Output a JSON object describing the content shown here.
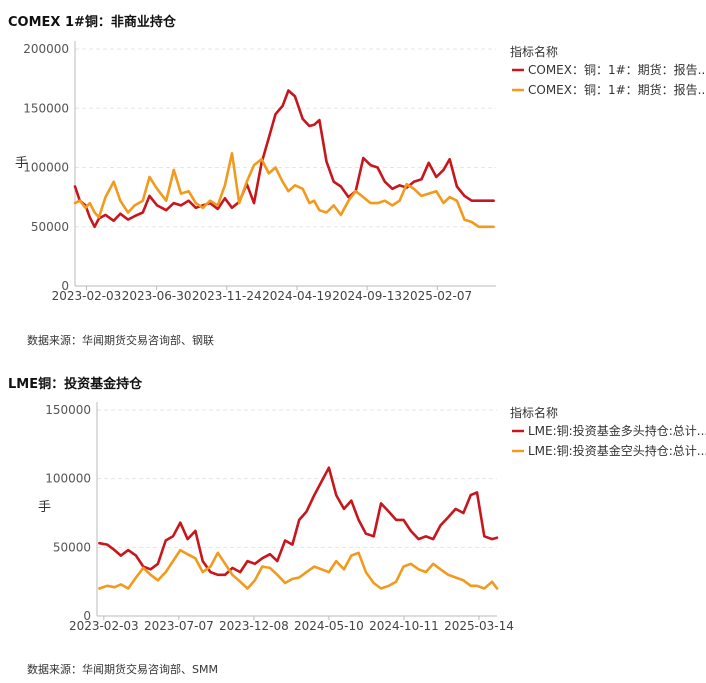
{
  "charts": [
    {
      "title": "COMEX 1#铜：非商业持仓",
      "source": "数据来源：华闻期货交易咨询部、钢联"
    },
    {
      "title": "LME铜：投资基金持仓",
      "source": "数据来源：华闻期货交易咨询部、SMM"
    }
  ],
  "chart_data": [
    {
      "type": "line",
      "title": "COMEX 1#铜：非商业持仓",
      "ylabel": "手",
      "ylim": [
        0,
        200000
      ],
      "yticks": [
        "200000",
        "150000",
        "100000",
        "50000",
        "0"
      ],
      "xlim": [
        "2023-01-10",
        "2025-06-10"
      ],
      "xticks": [
        "2023-02-03",
        "2023-06-30",
        "2023-11-24",
        "2024-04-19",
        "2024-09-13",
        "2025-02-07"
      ],
      "grid": true,
      "legend_title": "指标名称",
      "legend_position": "right",
      "series": [
        {
          "name": "COMEX：铜：1#：期货：报告...",
          "color": "#c8161d",
          "x": [
            "2023-01-10",
            "2023-01-20",
            "2023-02-01",
            "2023-02-10",
            "2023-02-20",
            "2023-03-01",
            "2023-03-15",
            "2023-04-01",
            "2023-04-15",
            "2023-05-01",
            "2023-05-15",
            "2023-06-01",
            "2023-06-15",
            "2023-07-01",
            "2023-07-20",
            "2023-08-05",
            "2023-08-20",
            "2023-09-05",
            "2023-09-20",
            "2023-10-05",
            "2023-10-20",
            "2023-11-05",
            "2023-11-20",
            "2023-12-05",
            "2023-12-20",
            "2024-01-05",
            "2024-01-20",
            "2024-02-05",
            "2024-02-20",
            "2024-03-05",
            "2024-03-20",
            "2024-04-01",
            "2024-04-15",
            "2024-05-01",
            "2024-05-15",
            "2024-05-25",
            "2024-06-05",
            "2024-06-20",
            "2024-07-05",
            "2024-07-20",
            "2024-08-05",
            "2024-08-20",
            "2024-09-05",
            "2024-09-20",
            "2024-10-05",
            "2024-10-20",
            "2024-11-05",
            "2024-11-20",
            "2024-12-05",
            "2024-12-20",
            "2025-01-05",
            "2025-01-20",
            "2025-02-05",
            "2025-02-20",
            "2025-03-05",
            "2025-03-20",
            "2025-04-05",
            "2025-04-20",
            "2025-05-05",
            "2025-05-20",
            "2025-06-05"
          ],
          "values": [
            84000,
            72000,
            68000,
            58000,
            50000,
            57000,
            60000,
            55000,
            61000,
            56000,
            59000,
            62000,
            76000,
            68000,
            64000,
            70000,
            68000,
            72000,
            66000,
            68000,
            70000,
            65000,
            74000,
            66000,
            71000,
            86000,
            70000,
            104000,
            125000,
            145000,
            152000,
            165000,
            160000,
            141000,
            135000,
            136000,
            140000,
            105000,
            88000,
            84000,
            75000,
            80000,
            108000,
            102000,
            100000,
            88000,
            82000,
            85000,
            83000,
            88000,
            90000,
            104000,
            92000,
            98000,
            107000,
            84000,
            76000,
            72000,
            72000,
            72000,
            72000
          ]
        },
        {
          "name": "COMEX：铜：1#：期货：报告...",
          "color": "#f29a1d",
          "x": [
            "2023-01-10",
            "2023-01-20",
            "2023-02-01",
            "2023-02-10",
            "2023-02-20",
            "2023-03-01",
            "2023-03-15",
            "2023-04-01",
            "2023-04-15",
            "2023-05-01",
            "2023-05-15",
            "2023-06-01",
            "2023-06-15",
            "2023-07-01",
            "2023-07-20",
            "2023-08-05",
            "2023-08-20",
            "2023-09-05",
            "2023-09-20",
            "2023-10-05",
            "2023-10-20",
            "2023-11-05",
            "2023-11-20",
            "2023-12-05",
            "2023-12-20",
            "2024-01-05",
            "2024-01-20",
            "2024-02-05",
            "2024-02-20",
            "2024-03-05",
            "2024-03-20",
            "2024-04-01",
            "2024-04-15",
            "2024-05-01",
            "2024-05-15",
            "2024-05-25",
            "2024-06-05",
            "2024-06-20",
            "2024-07-05",
            "2024-07-20",
            "2024-08-05",
            "2024-08-20",
            "2024-09-05",
            "2024-09-20",
            "2024-10-05",
            "2024-10-20",
            "2024-11-05",
            "2024-11-20",
            "2024-12-05",
            "2024-12-20",
            "2025-01-05",
            "2025-01-20",
            "2025-02-05",
            "2025-02-20",
            "2025-03-05",
            "2025-03-20",
            "2025-04-05",
            "2025-04-20",
            "2025-05-05",
            "2025-05-20",
            "2025-06-05"
          ],
          "values": [
            70000,
            72000,
            66000,
            70000,
            62000,
            58000,
            75000,
            88000,
            72000,
            62000,
            68000,
            72000,
            92000,
            82000,
            72000,
            98000,
            78000,
            80000,
            70000,
            66000,
            72000,
            68000,
            85000,
            112000,
            70000,
            88000,
            102000,
            107000,
            95000,
            100000,
            88000,
            80000,
            85000,
            82000,
            70000,
            72000,
            64000,
            62000,
            68000,
            60000,
            72000,
            80000,
            75000,
            70000,
            70000,
            72000,
            68000,
            72000,
            86000,
            82000,
            76000,
            78000,
            80000,
            70000,
            75000,
            72000,
            56000,
            54000,
            50000,
            50000,
            50000
          ]
        }
      ]
    },
    {
      "type": "line",
      "title": "LME铜：投资基金持仓",
      "ylabel": "手",
      "ylim": [
        0,
        150000
      ],
      "yticks": [
        "150000",
        "100000",
        "50000",
        "0"
      ],
      "xlim": [
        "2023-01-20",
        "2025-04-20"
      ],
      "xticks": [
        "2023-02-03",
        "2023-07-07",
        "2023-12-08",
        "2024-05-10",
        "2024-10-11",
        "2025-03-14"
      ],
      "grid": true,
      "legend_title": "指标名称",
      "legend_position": "right",
      "series": [
        {
          "name": "LME:铜:投资基金多头持仓:总计...",
          "color": "#c8161d",
          "x": [
            "2023-01-25",
            "2023-02-10",
            "2023-02-25",
            "2023-03-10",
            "2023-03-25",
            "2023-04-10",
            "2023-04-25",
            "2023-05-10",
            "2023-05-25",
            "2023-06-10",
            "2023-06-25",
            "2023-07-10",
            "2023-07-25",
            "2023-08-10",
            "2023-08-25",
            "2023-09-10",
            "2023-09-25",
            "2023-10-10",
            "2023-10-25",
            "2023-11-10",
            "2023-11-25",
            "2023-12-10",
            "2023-12-25",
            "2024-01-10",
            "2024-01-25",
            "2024-02-10",
            "2024-02-25",
            "2024-03-10",
            "2024-03-25",
            "2024-04-10",
            "2024-04-25",
            "2024-05-10",
            "2024-05-25",
            "2024-06-10",
            "2024-06-25",
            "2024-07-10",
            "2024-07-25",
            "2024-08-10",
            "2024-08-25",
            "2024-09-10",
            "2024-09-25",
            "2024-10-10",
            "2024-10-25",
            "2024-11-10",
            "2024-11-25",
            "2024-12-10",
            "2024-12-25",
            "2025-01-10",
            "2025-01-25",
            "2025-02-10",
            "2025-02-25",
            "2025-03-10",
            "2025-03-25",
            "2025-04-10",
            "2025-04-20"
          ],
          "values": [
            53000,
            52000,
            48000,
            44000,
            48000,
            44000,
            36000,
            34000,
            38000,
            55000,
            58000,
            68000,
            56000,
            62000,
            40000,
            32000,
            30000,
            30000,
            35000,
            32000,
            40000,
            38000,
            42000,
            45000,
            40000,
            55000,
            52000,
            70000,
            76000,
            88000,
            98000,
            108000,
            88000,
            78000,
            84000,
            70000,
            60000,
            58000,
            82000,
            76000,
            70000,
            70000,
            62000,
            56000,
            58000,
            56000,
            66000,
            72000,
            78000,
            75000,
            88000,
            90000,
            58000,
            56000,
            57000
          ]
        },
        {
          "name": "LME:铜:投资基金空头持仓:总计...",
          "color": "#f29a1d",
          "x": [
            "2023-01-25",
            "2023-02-10",
            "2023-02-25",
            "2023-03-10",
            "2023-03-25",
            "2023-04-10",
            "2023-04-25",
            "2023-05-10",
            "2023-05-25",
            "2023-06-10",
            "2023-06-25",
            "2023-07-10",
            "2023-07-25",
            "2023-08-10",
            "2023-08-25",
            "2023-09-10",
            "2023-09-25",
            "2023-10-10",
            "2023-10-25",
            "2023-11-10",
            "2023-11-25",
            "2023-12-10",
            "2023-12-25",
            "2024-01-10",
            "2024-01-25",
            "2024-02-10",
            "2024-02-25",
            "2024-03-10",
            "2024-03-25",
            "2024-04-10",
            "2024-04-25",
            "2024-05-10",
            "2024-05-25",
            "2024-06-10",
            "2024-06-25",
            "2024-07-10",
            "2024-07-25",
            "2024-08-10",
            "2024-08-25",
            "2024-09-10",
            "2024-09-25",
            "2024-10-10",
            "2024-10-25",
            "2024-11-10",
            "2024-11-25",
            "2024-12-10",
            "2024-12-25",
            "2025-01-10",
            "2025-01-25",
            "2025-02-10",
            "2025-02-25",
            "2025-03-10",
            "2025-03-25",
            "2025-04-10",
            "2025-04-20"
          ],
          "values": [
            20000,
            22000,
            21000,
            23000,
            20000,
            28000,
            35000,
            30000,
            26000,
            32000,
            40000,
            48000,
            45000,
            42000,
            32000,
            36000,
            46000,
            38000,
            30000,
            25000,
            20000,
            26000,
            36000,
            35000,
            30000,
            24000,
            27000,
            28000,
            32000,
            36000,
            34000,
            32000,
            40000,
            34000,
            44000,
            46000,
            32000,
            24000,
            20000,
            22000,
            25000,
            36000,
            38000,
            34000,
            32000,
            38000,
            34000,
            30000,
            28000,
            26000,
            22000,
            22000,
            20000,
            25000,
            20000
          ]
        }
      ]
    }
  ]
}
